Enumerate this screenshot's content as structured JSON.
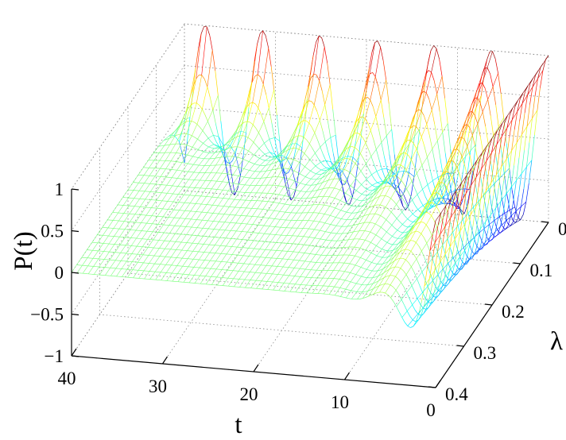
{
  "chart_data": {
    "type": "surface",
    "surface_style": "mesh",
    "colormap": "jet",
    "title": "",
    "xlabel": "t",
    "ylabel": "λ",
    "zlabel": "P(t)",
    "xlim": [
      0,
      40
    ],
    "ylim": [
      0,
      0.4
    ],
    "zlim": [
      -1,
      1
    ],
    "grid": true,
    "x_ticks": [
      "0",
      "10",
      "20",
      "30",
      "40"
    ],
    "y_ticks": [
      "0",
      "0.1",
      "0.2",
      "0.3",
      "0.4"
    ],
    "z_ticks": [
      "−1",
      "−0.5",
      "0",
      "0.5",
      "1"
    ],
    "description_of_function": "damped oscillation P(t) = exp(-λ·t)·cos(t)",
    "sample_points": [
      {
        "t": 0,
        "lambda": 0.0,
        "P": 1.0
      },
      {
        "t": 3.14,
        "lambda": 0.4,
        "P": -0.28
      },
      {
        "t": 3.14,
        "lambda": 0.0,
        "P": -1.0
      },
      {
        "t": 6.28,
        "lambda": 0.4,
        "P": 0.08
      },
      {
        "t": 40,
        "lambda": 0.4,
        "P": 0.0
      },
      {
        "t": 40,
        "lambda": 0.0,
        "P": -0.67
      }
    ]
  }
}
